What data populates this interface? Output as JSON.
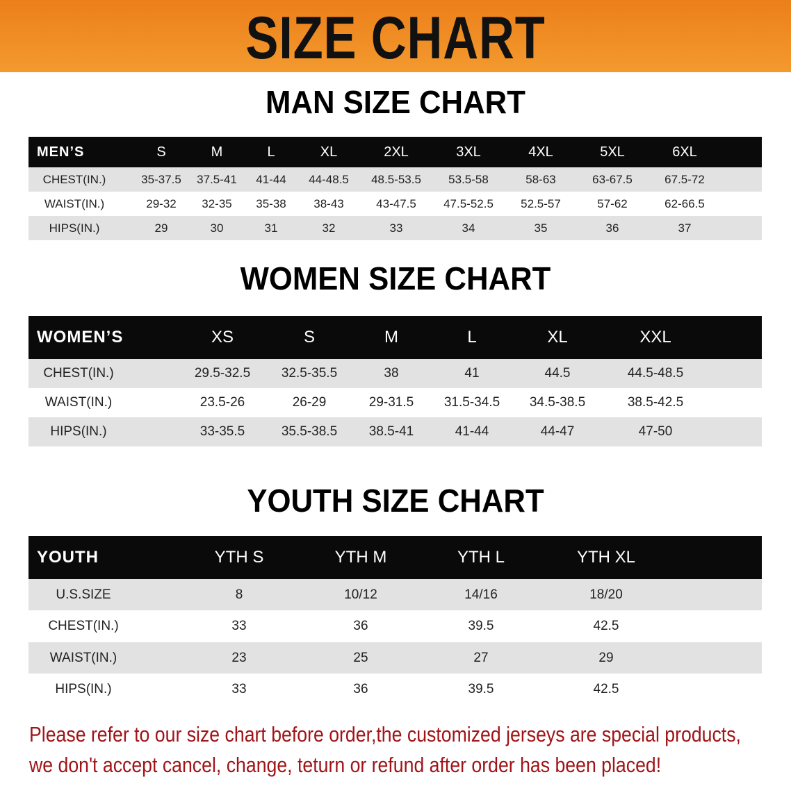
{
  "banner": {
    "title": "SIZE CHART",
    "color": "#ec7f1a"
  },
  "men": {
    "title": "MAN SIZE CHART",
    "header": [
      "MEN’S",
      "S",
      "M",
      "L",
      "XL",
      "2XL",
      "3XL",
      "4XL",
      "5XL",
      "6XL"
    ],
    "rows": [
      [
        "CHEST(IN.)",
        "35-37.5",
        "37.5-41",
        "41-44",
        "44-48.5",
        "48.5-53.5",
        "53.5-58",
        "58-63",
        "63-67.5",
        "67.5-72"
      ],
      [
        "WAIST(IN.)",
        "29-32",
        "32-35",
        "35-38",
        "38-43",
        "43-47.5",
        "47.5-52.5",
        "52.5-57",
        "57-62",
        "62-66.5"
      ],
      [
        "HIPS(IN.)",
        "29",
        "30",
        "31",
        "32",
        "33",
        "34",
        "35",
        "36",
        "37"
      ]
    ]
  },
  "women": {
    "title": "WOMEN SIZE CHART",
    "header": [
      "WOMEN’S",
      "XS",
      "S",
      "M",
      "L",
      "XL",
      "XXL"
    ],
    "rows": [
      [
        "CHEST(IN.)",
        "29.5-32.5",
        "32.5-35.5",
        "38",
        "41",
        "44.5",
        "44.5-48.5"
      ],
      [
        "WAIST(IN.)",
        "23.5-26",
        "26-29",
        "29-31.5",
        "31.5-34.5",
        "34.5-38.5",
        "38.5-42.5"
      ],
      [
        "HIPS(IN.)",
        "33-35.5",
        "35.5-38.5",
        "38.5-41",
        "41-44",
        "44-47",
        "47-50"
      ]
    ]
  },
  "youth": {
    "title": "YOUTH SIZE CHART",
    "header": [
      "YOUTH",
      "YTH S",
      "YTH M",
      "YTH L",
      "YTH XL"
    ],
    "rows": [
      [
        "U.S.SIZE",
        "8",
        "10/12",
        "14/16",
        "18/20"
      ],
      [
        "CHEST(IN.)",
        "33",
        "36",
        "39.5",
        "42.5"
      ],
      [
        "WAIST(IN.)",
        "23",
        "25",
        "27",
        "29"
      ],
      [
        "HIPS(IN.)",
        "33",
        "36",
        "39.5",
        "42.5"
      ]
    ]
  },
  "note": {
    "line1": "Please refer to our size chart before order,the customized jerseys are special products,",
    "line2": "we don't accept cancel, change, teturn or refund after order has been placed!",
    "color": "#a01418"
  }
}
